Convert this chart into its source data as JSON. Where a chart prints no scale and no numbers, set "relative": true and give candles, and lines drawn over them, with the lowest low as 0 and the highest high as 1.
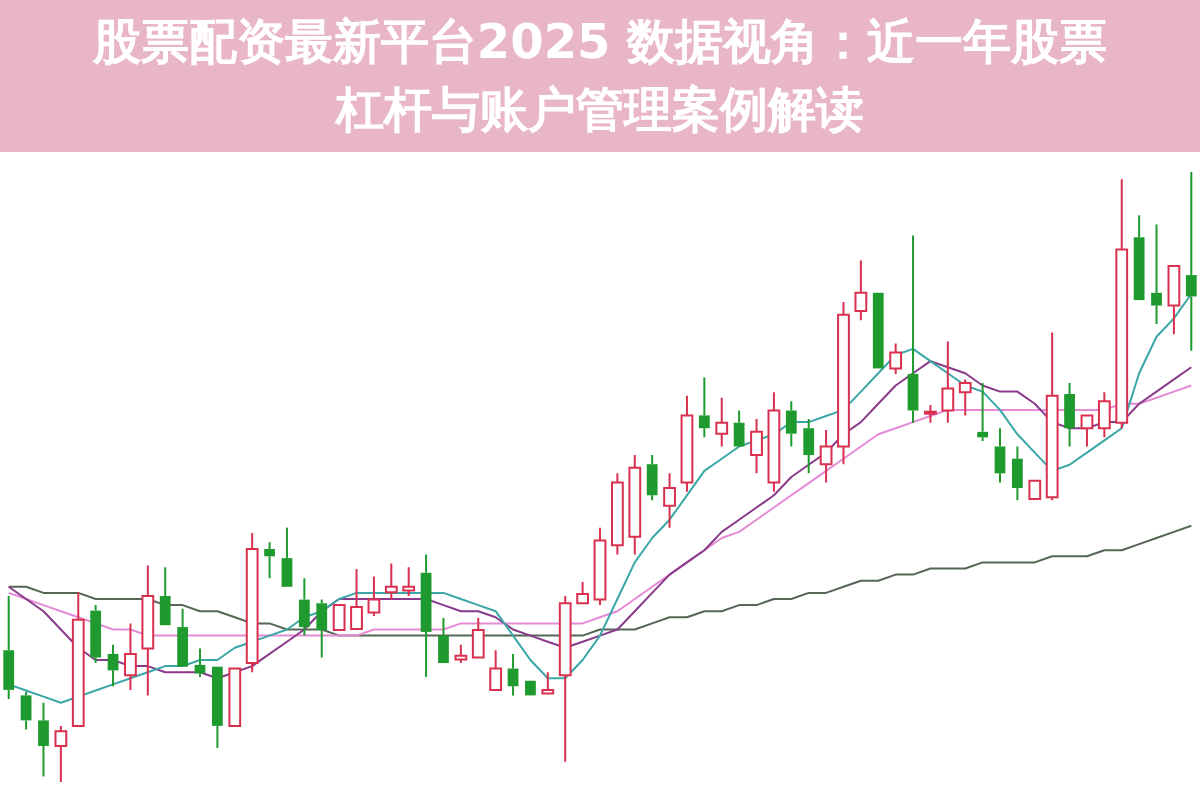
{
  "chart_data": {
    "type": "candlestick",
    "title": "股票配资最新平台2025 数据视角：近一年股票杠杆与账户管理案例解读",
    "relative": true,
    "tick_labels": false,
    "legend": false,
    "categories": [
      null,
      null,
      null,
      null,
      null,
      null,
      null,
      null,
      null,
      null,
      null,
      null,
      null,
      null,
      null,
      null,
      null,
      null,
      null,
      null,
      null,
      null,
      null,
      null,
      null,
      null,
      null,
      null,
      null,
      null,
      null,
      null,
      null,
      null,
      null,
      null,
      null,
      null,
      null,
      null,
      null,
      null,
      null,
      null,
      null,
      null,
      null,
      null,
      null,
      null,
      null,
      null,
      null,
      null,
      null,
      null,
      null,
      null,
      null,
      null,
      null,
      null,
      null,
      null,
      null,
      null,
      null,
      null,
      null
    ],
    "ohlc": [
      [
        0.216,
        0.305,
        0.136,
        0.151
      ],
      [
        0.142,
        0.148,
        0.086,
        0.101
      ],
      [
        0.101,
        0.13,
        0.009,
        0.059
      ],
      [
        0.059,
        0.092,
        0,
        0.083
      ],
      [
        0.092,
        0.311,
        0.092,
        0.266
      ],
      [
        0.281,
        0.29,
        0.195,
        0.204
      ],
      [
        0.21,
        0.225,
        0.157,
        0.183
      ],
      [
        0.175,
        0.26,
        0.151,
        0.21
      ],
      [
        0.219,
        0.355,
        0.142,
        0.305
      ],
      [
        0.305,
        0.352,
        0.257,
        0.257
      ],
      [
        0.254,
        0.284,
        0.189,
        0.189
      ],
      [
        0.192,
        0.219,
        0.172,
        0.178
      ],
      [
        0.189,
        0.189,
        0.056,
        0.092
      ],
      [
        0.092,
        0.186,
        0.092,
        0.186
      ],
      [
        0.195,
        0.408,
        0.18,
        0.382
      ],
      [
        0.382,
        0.393,
        0.334,
        0.37
      ],
      [
        0.367,
        0.417,
        0.32,
        0.32
      ],
      [
        0.299,
        0.334,
        0.24,
        0.254
      ],
      [
        0.293,
        0.299,
        0.204,
        0.249
      ],
      [
        0.249,
        0.29,
        0.249,
        0.29
      ],
      [
        0.251,
        0.349,
        0.251,
        0.287
      ],
      [
        0.278,
        0.337,
        0.272,
        0.299
      ],
      [
        0.311,
        0.358,
        0.299,
        0.32
      ],
      [
        0.314,
        0.352,
        0.305,
        0.32
      ],
      [
        0.343,
        0.373,
        0.172,
        0.246
      ],
      [
        0.24,
        0.269,
        0.195,
        0.195
      ],
      [
        0.201,
        0.225,
        0.195,
        0.207
      ],
      [
        0.204,
        0.269,
        0.204,
        0.249
      ],
      [
        0.151,
        0.216,
        0.151,
        0.186
      ],
      [
        0.186,
        0.21,
        0.142,
        0.157
      ],
      [
        0.166,
        0.166,
        0.142,
        0.142
      ],
      [
        0.145,
        0.18,
        0.145,
        0.151
      ],
      [
        0.175,
        0.305,
        0.033,
        0.293
      ],
      [
        0.293,
        0.328,
        0.293,
        0.308
      ],
      [
        0.299,
        0.417,
        0.29,
        0.396
      ],
      [
        0.388,
        0.506,
        0.373,
        0.491
      ],
      [
        0.402,
        0.536,
        0.373,
        0.515
      ],
      [
        0.521,
        0.536,
        0.462,
        0.47
      ],
      [
        0.453,
        0.506,
        0.417,
        0.482
      ],
      [
        0.491,
        0.633,
        0.476,
        0.601
      ],
      [
        0.601,
        0.663,
        0.565,
        0.58
      ],
      [
        0.571,
        0.63,
        0.55,
        0.589
      ],
      [
        0.589,
        0.609,
        0.55,
        0.55
      ],
      [
        0.536,
        0.595,
        0.506,
        0.574
      ],
      [
        0.491,
        0.639,
        0.476,
        0.609
      ],
      [
        0.609,
        0.624,
        0.55,
        0.571
      ],
      [
        0.58,
        0.595,
        0.506,
        0.536
      ],
      [
        0.521,
        0.577,
        0.491,
        0.55
      ],
      [
        0.55,
        0.787,
        0.521,
        0.766
      ],
      [
        0.772,
        0.855,
        0.757,
        0.802
      ],
      [
        0.802,
        0.802,
        0.678,
        0.678
      ],
      [
        0.678,
        0.719,
        0.669,
        0.704
      ],
      [
        0.669,
        0.896,
        0.589,
        0.609
      ],
      [
        0.604,
        0.618,
        0.589,
        0.607
      ],
      [
        0.609,
        0.722,
        0.589,
        0.645
      ],
      [
        0.639,
        0.66,
        0.601,
        0.654
      ],
      [
        0.574,
        0.654,
        0.559,
        0.565
      ],
      [
        0.55,
        0.58,
        0.491,
        0.506
      ],
      [
        0.53,
        0.55,
        0.462,
        0.482
      ],
      [
        0.464,
        0.494,
        0.464,
        0.494
      ],
      [
        0.467,
        0.737,
        0.462,
        0.633
      ],
      [
        0.636,
        0.654,
        0.55,
        0.58
      ],
      [
        0.58,
        0.601,
        0.55,
        0.601
      ],
      [
        0.58,
        0.639,
        0.565,
        0.624
      ],
      [
        0.589,
        0.988,
        0.58,
        0.873
      ],
      [
        0.893,
        0.929,
        0.79,
        0.79
      ],
      [
        0.802,
        0.914,
        0.751,
        0.781
      ],
      [
        0.781,
        0.846,
        0.734,
        0.846
      ],
      [
        0.831,
        1,
        0.707,
        0.796
      ]
    ],
    "colors": [
      "#1f9a2e",
      "#1f9a2e",
      "#1f9a2e",
      "#d9304f",
      "#d9304f",
      "#1f9a2e",
      "#1f9a2e",
      "#d9304f",
      "#d9304f",
      "#1f9a2e",
      "#1f9a2e",
      "#1f9a2e",
      "#1f9a2e",
      "#d9304f",
      "#d9304f",
      "#1f9a2e",
      "#1f9a2e",
      "#1f9a2e",
      "#1f9a2e",
      "#d9304f",
      "#d9304f",
      "#d9304f",
      "#d9304f",
      "#d9304f",
      "#1f9a2e",
      "#1f9a2e",
      "#d9304f",
      "#d9304f",
      "#d9304f",
      "#1f9a2e",
      "#1f9a2e",
      "#d9304f",
      "#d9304f",
      "#d9304f",
      "#d9304f",
      "#d9304f",
      "#d9304f",
      "#1f9a2e",
      "#d9304f",
      "#d9304f",
      "#1f9a2e",
      "#d9304f",
      "#1f9a2e",
      "#d9304f",
      "#d9304f",
      "#1f9a2e",
      "#1f9a2e",
      "#d9304f",
      "#d9304f",
      "#d9304f",
      "#1f9a2e",
      "#d9304f",
      "#1f9a2e",
      "#d9304f",
      "#d9304f",
      "#d9304f",
      "#1f9a2e",
      "#1f9a2e",
      "#1f9a2e",
      "#d9304f",
      "#d9304f",
      "#1f9a2e",
      "#d9304f",
      "#d9304f",
      "#d9304f",
      "#1f9a2e",
      "#1f9a2e",
      "#d9304f",
      "#1f9a2e"
    ],
    "series": [
      {
        "type": "line",
        "color": "#3aa6a6",
        "values": [
          0.16,
          0.15,
          0.14,
          0.13,
          0.14,
          0.15,
          0.16,
          0.17,
          0.18,
          0.19,
          0.19,
          0.2,
          0.2,
          0.22,
          0.23,
          0.24,
          0.25,
          0.27,
          0.28,
          0.3,
          0.31,
          0.31,
          0.31,
          0.31,
          0.31,
          0.31,
          0.3,
          0.29,
          0.28,
          0.24,
          0.2,
          0.17,
          0.17,
          0.2,
          0.24,
          0.3,
          0.36,
          0.4,
          0.43,
          0.47,
          0.51,
          0.53,
          0.55,
          0.56,
          0.57,
          0.59,
          0.59,
          0.6,
          0.61,
          0.64,
          0.67,
          0.7,
          0.71,
          0.69,
          0.67,
          0.65,
          0.64,
          0.61,
          0.57,
          0.54,
          0.51,
          0.52,
          0.54,
          0.56,
          0.58,
          0.67,
          0.73,
          0.76,
          0.8
        ]
      },
      {
        "type": "line",
        "color": "#8a3a8a",
        "values": [
          0.32,
          0.3,
          0.28,
          0.25,
          0.22,
          0.2,
          0.2,
          0.19,
          0.19,
          0.18,
          0.18,
          0.18,
          0.17,
          0.18,
          0.19,
          0.21,
          0.23,
          0.25,
          0.28,
          0.3,
          0.3,
          0.3,
          0.3,
          0.3,
          0.3,
          0.29,
          0.28,
          0.28,
          0.27,
          0.25,
          0.24,
          0.23,
          0.22,
          0.23,
          0.24,
          0.25,
          0.28,
          0.31,
          0.34,
          0.36,
          0.38,
          0.41,
          0.43,
          0.45,
          0.47,
          0.5,
          0.52,
          0.54,
          0.57,
          0.59,
          0.62,
          0.65,
          0.67,
          0.69,
          0.68,
          0.67,
          0.65,
          0.64,
          0.64,
          0.62,
          0.59,
          0.58,
          0.58,
          0.59,
          0.59,
          0.62,
          0.64,
          0.66,
          0.68
        ]
      },
      {
        "type": "line",
        "color": "#e58ad6",
        "values": [
          0.31,
          0.3,
          0.29,
          0.28,
          0.27,
          0.26,
          0.25,
          0.25,
          0.24,
          0.24,
          0.24,
          0.24,
          0.24,
          0.24,
          0.24,
          0.24,
          0.24,
          0.24,
          0.24,
          0.24,
          0.24,
          0.25,
          0.25,
          0.25,
          0.25,
          0.25,
          0.26,
          0.26,
          0.26,
          0.26,
          0.26,
          0.26,
          0.26,
          0.26,
          0.27,
          0.28,
          0.3,
          0.32,
          0.34,
          0.36,
          0.38,
          0.4,
          0.41,
          0.43,
          0.45,
          0.47,
          0.49,
          0.51,
          0.53,
          0.55,
          0.57,
          0.58,
          0.59,
          0.6,
          0.61,
          0.61,
          0.61,
          0.61,
          0.61,
          0.61,
          0.61,
          0.61,
          0.61,
          0.61,
          0.62,
          0.62,
          0.63,
          0.64,
          0.65
        ]
      },
      {
        "type": "line",
        "color": "#556655",
        "values": [
          0.32,
          0.32,
          0.31,
          0.31,
          0.31,
          0.3,
          0.3,
          0.3,
          0.3,
          0.29,
          0.29,
          0.28,
          0.28,
          0.27,
          0.26,
          0.26,
          0.25,
          0.25,
          0.25,
          0.24,
          0.24,
          0.24,
          0.24,
          0.24,
          0.24,
          0.24,
          0.24,
          0.24,
          0.24,
          0.24,
          0.24,
          0.24,
          0.24,
          0.24,
          0.25,
          0.25,
          0.25,
          0.26,
          0.27,
          0.27,
          0.28,
          0.28,
          0.29,
          0.29,
          0.3,
          0.3,
          0.31,
          0.31,
          0.32,
          0.33,
          0.33,
          0.34,
          0.34,
          0.35,
          0.35,
          0.35,
          0.36,
          0.36,
          0.36,
          0.36,
          0.37,
          0.37,
          0.37,
          0.38,
          0.38,
          0.39,
          0.4,
          0.41,
          0.42
        ]
      }
    ]
  }
}
